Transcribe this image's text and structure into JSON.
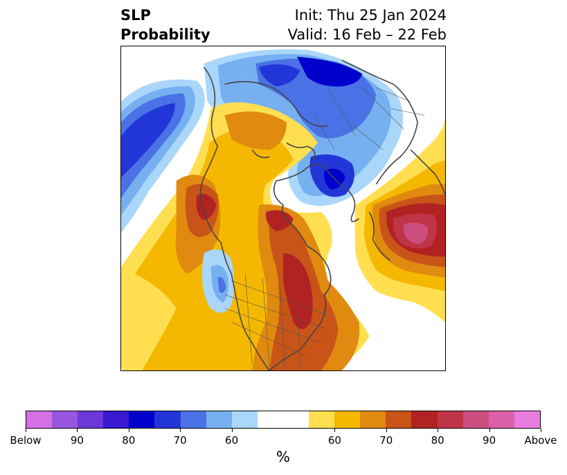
{
  "title": {
    "left_line1": "SLP",
    "left_line2": "Probability",
    "right_line1": "Init: Thu 25 Jan 2024",
    "right_line2": "Valid: 16 Feb – 22 Feb"
  },
  "colorbar": {
    "unit": "%",
    "segments": [
      "#d46fe4",
      "#9a55e0",
      "#6d38d8",
      "#3a17d0",
      "#0000cc",
      "#2236d8",
      "#4a72e6",
      "#76b0f0",
      "#aad6fa",
      "#ffffff",
      "#ffdf50",
      "#f5b800",
      "#e08a10",
      "#c85418",
      "#b22222",
      "#c03448",
      "#cc4e80",
      "#dc60a8",
      "#e87ce0"
    ],
    "labels": [
      "Below",
      "90",
      "80",
      "70",
      "60",
      "60",
      "70",
      "80",
      "90",
      "Above"
    ]
  },
  "colors": {
    "coast": "#444444",
    "border": "#555555"
  }
}
